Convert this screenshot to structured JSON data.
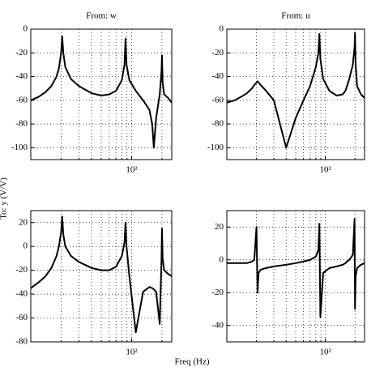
{
  "xlabel": "Freq (Hz)",
  "ylabel": "To: y (V/V)",
  "chart_data": [
    {
      "type": "line",
      "title": "From: w",
      "xscale": "log",
      "grid": true,
      "xlim": [
        10,
        250
      ],
      "xticks": [
        {
          "value": 100,
          "label": "10²"
        }
      ],
      "xminor": [
        20,
        30,
        40,
        50,
        60,
        70,
        80,
        90,
        200
      ],
      "ylim": [
        -110,
        0
      ],
      "yticks": [
        -100,
        -80,
        -60,
        -40,
        -20,
        0
      ],
      "x": [
        10,
        12,
        14,
        16,
        18,
        19,
        20,
        20.5,
        21,
        22,
        25,
        30,
        40,
        50,
        60,
        70,
        80,
        85,
        87,
        89,
        95,
        110,
        130,
        150,
        160,
        166,
        175,
        190,
        198,
        200,
        203,
        210,
        230,
        250
      ],
      "series": [
        {
          "color": "#000000",
          "values": [
            -60,
            -57,
            -53,
            -48,
            -40,
            -33,
            -20,
            -6,
            -20,
            -32,
            -42,
            -48,
            -54,
            -56,
            -55,
            -52,
            -43,
            -30,
            -8,
            -30,
            -43,
            -52,
            -60,
            -68,
            -80,
            -100,
            -75,
            -55,
            -35,
            -22,
            -45,
            -55,
            -58,
            -62
          ]
        }
      ]
    },
    {
      "type": "line",
      "title": "From: u",
      "xscale": "log",
      "grid": true,
      "xlim": [
        10,
        250
      ],
      "xticks": [
        {
          "value": 100,
          "label": "10²"
        }
      ],
      "xminor": [
        20,
        30,
        40,
        50,
        60,
        70,
        80,
        90,
        200
      ],
      "ylim": [
        -110,
        0
      ],
      "yticks": [
        -100,
        -80,
        -60,
        -40,
        -20,
        0
      ],
      "x": [
        10,
        12,
        14,
        16,
        18,
        19,
        20,
        20.5,
        21,
        22,
        25,
        30,
        40,
        50,
        60,
        70,
        80,
        85,
        87,
        89,
        95,
        110,
        130,
        150,
        160,
        166,
        175,
        190,
        198,
        200,
        203,
        210,
        230,
        250
      ],
      "series": [
        {
          "color": "#000000",
          "values": [
            -62,
            -60,
            -57,
            -54,
            -50,
            -47,
            -45,
            -44,
            -45,
            -47,
            -52,
            -60,
            -100,
            -75,
            -60,
            -48,
            -32,
            -20,
            -4,
            -25,
            -42,
            -52,
            -56,
            -55,
            -52,
            -48,
            -42,
            -30,
            -15,
            -3,
            -30,
            -48,
            -55,
            -58
          ]
        }
      ]
    },
    {
      "type": "line",
      "xscale": "log",
      "grid": true,
      "xlim": [
        10,
        250
      ],
      "xticks": [
        {
          "value": 100,
          "label": "10²"
        }
      ],
      "xminor": [
        20,
        30,
        40,
        50,
        60,
        70,
        80,
        90,
        200
      ],
      "ylim": [
        -80,
        30
      ],
      "yticks": [
        -80,
        -60,
        -40,
        -20,
        0,
        20
      ],
      "x": [
        10,
        12,
        14,
        16,
        18,
        19,
        20,
        20.5,
        21,
        22,
        25,
        30,
        40,
        50,
        60,
        70,
        80,
        85,
        87,
        89,
        95,
        110,
        130,
        150,
        160,
        166,
        175,
        190,
        198,
        200,
        203,
        210,
        230,
        250
      ],
      "series": [
        {
          "color": "#000000",
          "values": [
            -35,
            -30,
            -25,
            -18,
            -8,
            0,
            12,
            25,
            10,
            0,
            -8,
            -13,
            -18,
            -20,
            -20,
            -17,
            -8,
            3,
            20,
            0,
            -25,
            -72,
            -38,
            -34,
            -35,
            -36,
            -38,
            -65,
            -10,
            15,
            -10,
            -20,
            -23,
            -25
          ]
        }
      ]
    },
    {
      "type": "line",
      "xscale": "log",
      "grid": true,
      "xlim": [
        10,
        250
      ],
      "xticks": [
        {
          "value": 100,
          "label": "10²"
        }
      ],
      "xminor": [
        20,
        30,
        40,
        50,
        60,
        70,
        80,
        90,
        200
      ],
      "ylim": [
        -50,
        30
      ],
      "yticks": [
        -40,
        -20,
        0,
        20
      ],
      "x": [
        10,
        12,
        14,
        16,
        18,
        19,
        20,
        20.5,
        21,
        22,
        25,
        30,
        40,
        50,
        60,
        70,
        80,
        85,
        87,
        89,
        95,
        110,
        130,
        150,
        160,
        166,
        175,
        190,
        198,
        200,
        203,
        210,
        230,
        250
      ],
      "series": [
        {
          "color": "#000000",
          "values": [
            -2,
            -2,
            -2,
            -2,
            -1,
            0,
            20,
            -20,
            -8,
            -6,
            -5,
            -4,
            -3,
            -2,
            -1,
            0,
            2,
            6,
            22,
            -35,
            -8,
            -5,
            -4,
            -3,
            -2,
            -1,
            0,
            3,
            25,
            -30,
            -10,
            -5,
            -3,
            -2
          ]
        }
      ]
    }
  ]
}
